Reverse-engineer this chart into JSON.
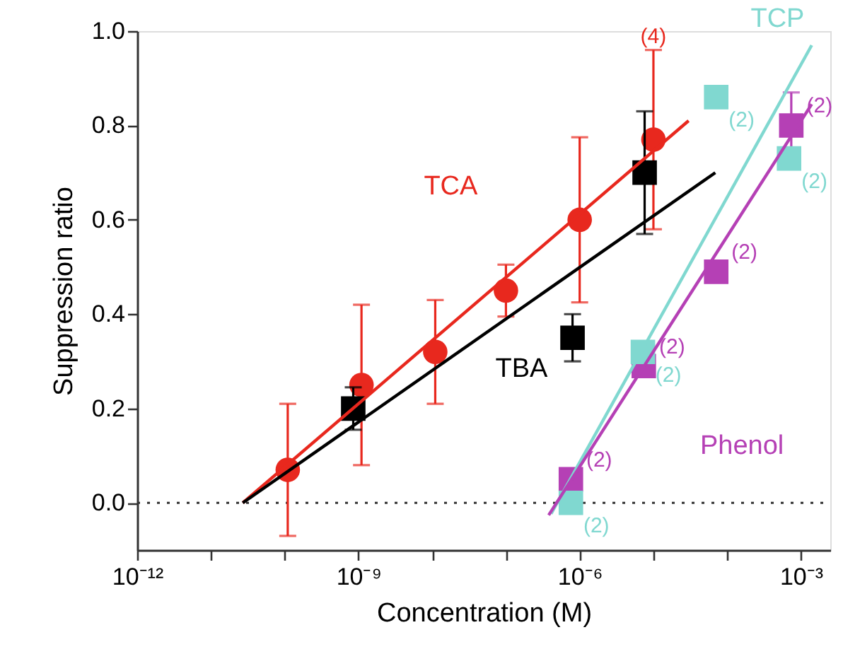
{
  "chart_data": {
    "type": "scatter",
    "xlabel": "Concentration (M)",
    "ylabel": "Suppression ratio",
    "log": "x",
    "xlim": [
      1e-12,
      0.0025
    ],
    "ylim": [
      -0.1,
      1.0
    ],
    "xticks": [
      {
        "value": 1e-12,
        "label": "10⁻¹²"
      },
      {
        "value": 1e-11,
        "label": null
      },
      {
        "value": 1e-10,
        "label": null
      },
      {
        "value": 1e-09,
        "label": "10⁻⁹"
      },
      {
        "value": 1e-08,
        "label": null
      },
      {
        "value": 1e-07,
        "label": null
      },
      {
        "value": 1e-06,
        "label": "10⁻⁶"
      },
      {
        "value": 1e-05,
        "label": null
      },
      {
        "value": 0.0001,
        "label": null
      },
      {
        "value": 0.001,
        "label": "10⁻³"
      }
    ],
    "yticks": [
      {
        "value": 0,
        "label": "0.0"
      },
      {
        "value": 0.2,
        "label": "0.2"
      },
      {
        "value": 0.4,
        "label": "0.4"
      },
      {
        "value": 0.6,
        "label": "0.6"
      },
      {
        "value": 0.8,
        "label": "0.8"
      },
      {
        "value": 1.0,
        "label": "1.0"
      }
    ],
    "grid": false,
    "annotations": [
      {
        "text": "(4)",
        "x": 1e-05,
        "y": 0.96
      },
      {
        "text": "(2)",
        "x": 7.6e-07,
        "y": 0.0
      },
      {
        "text": "(2)",
        "x": 7.2e-06,
        "y": 0.32
      },
      {
        "text": "(2)",
        "x": 7.1e-05,
        "y": 0.86
      },
      {
        "text": "(2)",
        "x": 0.00069,
        "y": 0.73
      },
      {
        "text": "(2)",
        "x": 7.6e-07,
        "y": 0.05
      },
      {
        "text": "(2)",
        "x": 7.4e-06,
        "y": 0.29
      },
      {
        "text": "(2)",
        "x": 7.1e-05,
        "y": 0.49
      },
      {
        "text": "(2)",
        "x": 0.00074,
        "y": 0.8
      }
    ],
    "ref_lines": [
      {
        "axis": "y",
        "value": 0,
        "line_style": "dotted",
        "color": "#333333"
      }
    ],
    "series": [
      {
        "name": "TCA",
        "marker": "circle",
        "color": "#e8281e",
        "x": [
          1.1e-10,
          1.1e-09,
          1.1e-08,
          1e-07,
          1e-06,
          1e-05
        ],
        "values": [
          0.07,
          0.25,
          0.32,
          0.45,
          0.6,
          0.77
        ],
        "errors": [
          0.14,
          0.17,
          0.11,
          0.055,
          0.175,
          0.19
        ]
      },
      {
        "name": "TBA",
        "marker": "square",
        "color": "#000000",
        "x": [
          8.5e-10,
          8e-07,
          7.6e-06
        ],
        "values": [
          0.2,
          0.35,
          0.7
        ],
        "errors": [
          0.045,
          0.05,
          0.13
        ]
      },
      {
        "name": "Phenol",
        "marker": "square",
        "color": "#b540b5",
        "x": [
          7.6e-07,
          7.4e-06,
          7.1e-05,
          0.00074
        ],
        "values": [
          0.05,
          0.29,
          0.49,
          0.8
        ],
        "errors": [
          null,
          null,
          null,
          0.07
        ]
      },
      {
        "name": "TCP",
        "marker": "square",
        "color": "#80d8d0",
        "x": [
          7.6e-07,
          7.2e-06,
          7.1e-05,
          0.00069
        ],
        "values": [
          0.0,
          0.32,
          0.86,
          0.73
        ]
      },
      {
        "type": "line",
        "color": "#e8281e",
        "x": [
          2.7e-11,
          3e-05
        ],
        "values": [
          0,
          0.81
        ]
      },
      {
        "type": "line",
        "color": "#000000",
        "x": [
          2.7e-11,
          6.9e-05
        ],
        "values": [
          0,
          0.7
        ]
      },
      {
        "type": "line",
        "color": "#80d8d0",
        "x": [
          4.1e-07,
          0.0014
        ],
        "values": [
          -0.023,
          0.97
        ]
      },
      {
        "type": "line",
        "color": "#b540b5",
        "x": [
          3.8e-07,
          0.0014
        ],
        "values": [
          -0.026,
          0.845
        ]
      }
    ]
  }
}
